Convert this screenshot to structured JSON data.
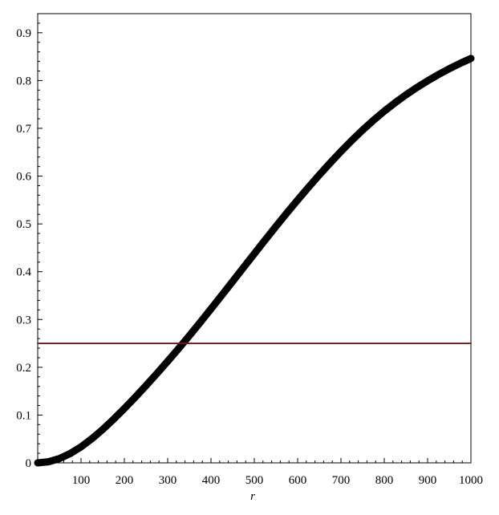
{
  "chart_data": {
    "type": "line",
    "xlabel": "r",
    "xlim": [
      0,
      1000
    ],
    "ylim": [
      0,
      0.94
    ],
    "xticks": [
      100,
      200,
      300,
      400,
      500,
      600,
      700,
      800,
      900,
      1000
    ],
    "xtick_labels": [
      "100",
      "200",
      "300",
      "400",
      "500",
      "600",
      "700",
      "800",
      "900",
      "1000"
    ],
    "yticks": [
      0,
      0.1,
      0.2,
      0.3,
      0.4,
      0.5,
      0.6,
      0.7,
      0.8,
      0.9
    ],
    "ytick_labels": [
      "0",
      "0.1",
      "0.2",
      "0.3",
      "0.4",
      "0.5",
      "0.6",
      "0.7",
      "0.8",
      "0.9"
    ],
    "grid": false,
    "series": [
      {
        "color": "#000000",
        "style": "thick-solid",
        "x": [
          0,
          25,
          50,
          75,
          100,
          125,
          150,
          175,
          200,
          225,
          250,
          275,
          300,
          325,
          350,
          375,
          400,
          425,
          450,
          475,
          500,
          525,
          550,
          575,
          600,
          625,
          650,
          675,
          700,
          725,
          750,
          775,
          800,
          825,
          850,
          875,
          900,
          925,
          950,
          975,
          1000
        ],
        "y": [
          0.0,
          0.0023,
          0.0089,
          0.0195,
          0.0335,
          0.0505,
          0.0699,
          0.0911,
          0.1137,
          0.1373,
          0.1617,
          0.1867,
          0.2125,
          0.2389,
          0.2661,
          0.2938,
          0.3221,
          0.3508,
          0.3797,
          0.4087,
          0.4376,
          0.4664,
          0.4948,
          0.5227,
          0.55,
          0.5766,
          0.6025,
          0.6275,
          0.6516,
          0.6746,
          0.6964,
          0.7168,
          0.7359,
          0.7536,
          0.7701,
          0.7853,
          0.7994,
          0.8125,
          0.8247,
          0.8359,
          0.8462
        ]
      },
      {
        "color": "#7a1414",
        "style": "thin-solid",
        "x": [
          0,
          1000
        ],
        "y": [
          0.25,
          0.25
        ]
      }
    ]
  }
}
